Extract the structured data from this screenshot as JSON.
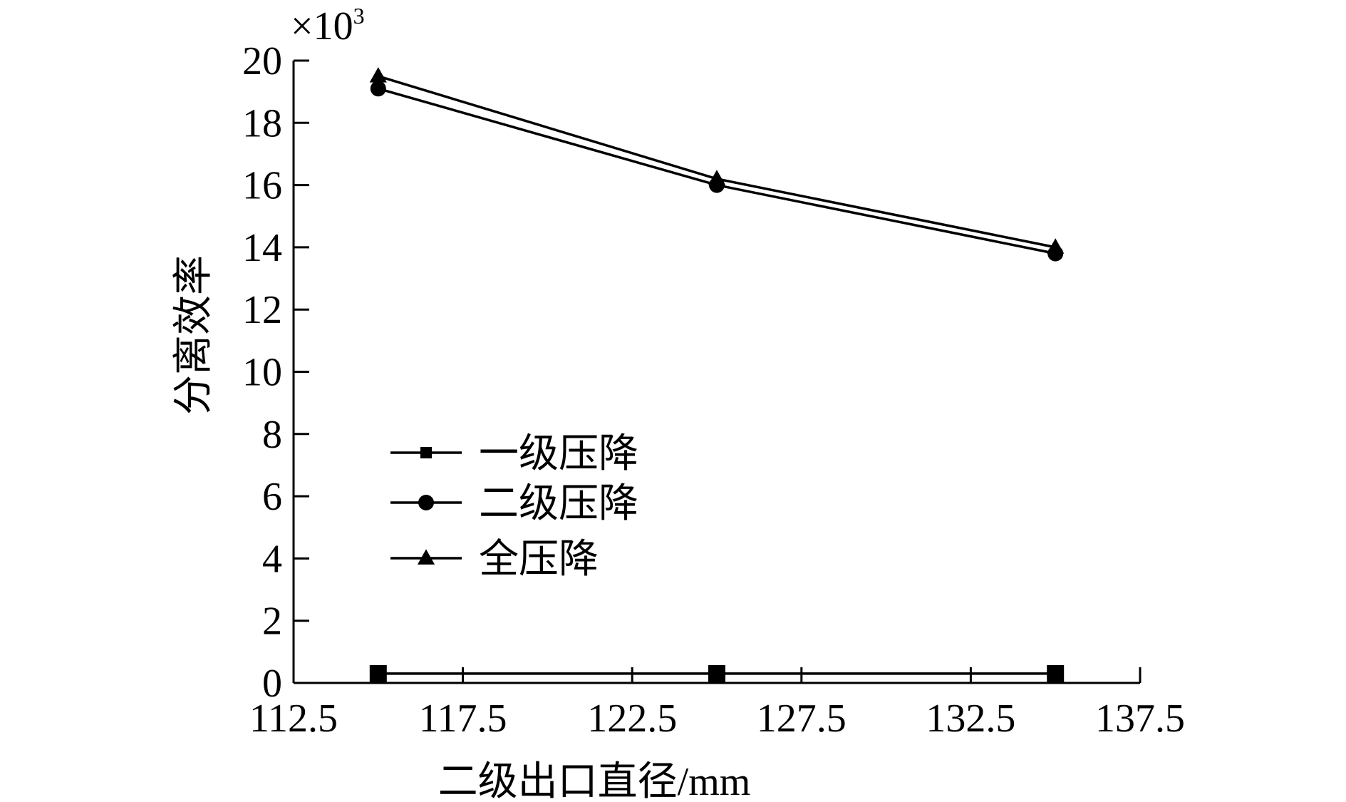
{
  "chart_data": {
    "type": "line",
    "title": "",
    "xlabel": "二级出口直径/mm",
    "ylabel": "分离效率",
    "y_multiplier": {
      "base": "×10",
      "exponent": "3"
    },
    "xlim": [
      112.5,
      137.5
    ],
    "ylim": [
      0,
      20
    ],
    "x_ticks": [
      "112.5",
      "117.5",
      "122.5",
      "127.5",
      "132.5",
      "137.5"
    ],
    "y_ticks": [
      "0",
      "2",
      "4",
      "6",
      "8",
      "10",
      "12",
      "14",
      "16",
      "18",
      "20"
    ],
    "x": [
      115,
      125,
      135
    ],
    "series": [
      {
        "name": "一级压降",
        "marker": "square",
        "values": [
          0.3,
          0.3,
          0.3
        ]
      },
      {
        "name": "二级压降",
        "marker": "circle",
        "values": [
          19.1,
          16.0,
          13.8
        ]
      },
      {
        "name": "全压降",
        "marker": "triangle",
        "values": [
          19.5,
          16.2,
          14.0
        ]
      }
    ],
    "legend_position": "middle-left",
    "grid": false,
    "colors": {
      "line": "#000000",
      "marker": "#000000"
    }
  }
}
